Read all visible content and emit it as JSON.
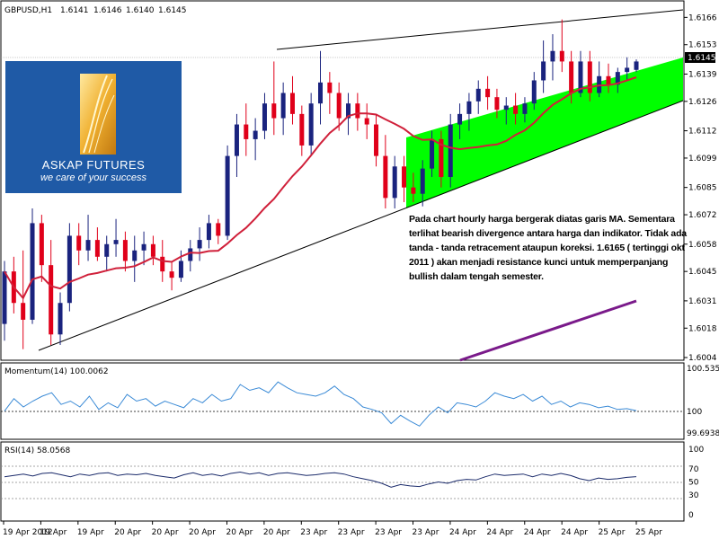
{
  "header": {
    "symbol": "GBPUSD,H1",
    "ohlc": [
      "1.6141",
      "1.6146",
      "1.6140",
      "1.6145"
    ]
  },
  "logo": {
    "name": "ASKAP FUTURES",
    "tagline": "we care of your success"
  },
  "note": "Pada chart hourly harga bergerak diatas garis MA. Sementara terlihat bearish divergence antara harga dan indikator. Tidak ada tanda - tanda retracement ataupun koreksi. 1.6165 ( tertinggi okt 2011 ) akan menjadi resistance kunci untuk memperpanjang bullish dalam tengah semester.",
  "colors": {
    "bull": "#1a237e",
    "bear": "#e0001a",
    "ma": "#d0203a",
    "channel_fill": "#00ff00",
    "momentum": "#3a8ad6",
    "rsi": "#1a2a6a",
    "purple": "#7a1a8a"
  },
  "chart_data": [
    {
      "type": "candlestick",
      "title": "GBPUSD,H1",
      "ylim": [
        1.6004,
        1.617
      ],
      "y_ticks": [
        "1.6166",
        "1.6153",
        "1.6139",
        "1.6126",
        "1.6112",
        "1.6099",
        "1.6085",
        "1.6072",
        "1.6058",
        "1.6045",
        "1.6031",
        "1.6018",
        "1.6004"
      ],
      "current_price": "1.6145",
      "x_tick_labels": [
        "19 Apr 2012",
        "19 Apr",
        "19 Apr",
        "20 Apr",
        "20 Apr",
        "20 Apr",
        "20 Apr",
        "20 Apr",
        "23 Apr",
        "23 Apr",
        "23 Apr",
        "23 Apr",
        "24 Apr",
        "24 Apr",
        "24 Apr",
        "24 Apr",
        "25 Apr",
        "25 Apr"
      ],
      "candles": [
        [
          1.602,
          1.605,
          1.6012,
          1.6045
        ],
        [
          1.6045,
          1.6052,
          1.6025,
          1.603
        ],
        [
          1.603,
          1.6055,
          1.6008,
          1.6022
        ],
        [
          1.6022,
          1.6075,
          1.602,
          1.6068
        ],
        [
          1.6068,
          1.6072,
          1.604,
          1.6048
        ],
        [
          1.6048,
          1.606,
          1.601,
          1.6015
        ],
        [
          1.6015,
          1.6035,
          1.601,
          1.603
        ],
        [
          1.603,
          1.6068,
          1.6026,
          1.6062
        ],
        [
          1.6062,
          1.6068,
          1.6048,
          1.6055
        ],
        [
          1.6055,
          1.6072,
          1.605,
          1.606
        ],
        [
          1.606,
          1.6066,
          1.605,
          1.6052
        ],
        [
          1.6052,
          1.6062,
          1.6045,
          1.6058
        ],
        [
          1.6058,
          1.607,
          1.6052,
          1.606
        ],
        [
          1.606,
          1.6064,
          1.6045,
          1.605
        ],
        [
          1.605,
          1.6062,
          1.604,
          1.6055
        ],
        [
          1.6055,
          1.6064,
          1.6048,
          1.6058
        ],
        [
          1.6058,
          1.6062,
          1.6048,
          1.6052
        ],
        [
          1.6052,
          1.606,
          1.604,
          1.6045
        ],
        [
          1.6045,
          1.605,
          1.6036,
          1.6042
        ],
        [
          1.6042,
          1.6055,
          1.604,
          1.605
        ],
        [
          1.605,
          1.606,
          1.6045,
          1.6056
        ],
        [
          1.6056,
          1.6066,
          1.605,
          1.606
        ],
        [
          1.606,
          1.6072,
          1.6056,
          1.6068
        ],
        [
          1.6068,
          1.607,
          1.6058,
          1.6062
        ],
        [
          1.6062,
          1.6105,
          1.606,
          1.61
        ],
        [
          1.61,
          1.612,
          1.609,
          1.6115
        ],
        [
          1.6115,
          1.6125,
          1.61,
          1.6108
        ],
        [
          1.6108,
          1.6118,
          1.6098,
          1.6112
        ],
        [
          1.6112,
          1.613,
          1.6108,
          1.6125
        ],
        [
          1.6125,
          1.6145,
          1.611,
          1.6118
        ],
        [
          1.6118,
          1.6135,
          1.611,
          1.613
        ],
        [
          1.613,
          1.6138,
          1.6115,
          1.612
        ],
        [
          1.612,
          1.6124,
          1.61,
          1.6105
        ],
        [
          1.6105,
          1.613,
          1.61,
          1.6125
        ],
        [
          1.6125,
          1.615,
          1.6115,
          1.6135
        ],
        [
          1.6135,
          1.614,
          1.612,
          1.613
        ],
        [
          1.613,
          1.6135,
          1.6112,
          1.6118
        ],
        [
          1.6118,
          1.613,
          1.611,
          1.6125
        ],
        [
          1.6125,
          1.613,
          1.6112,
          1.6118
        ],
        [
          1.6118,
          1.6125,
          1.6108,
          1.6115
        ],
        [
          1.6115,
          1.612,
          1.6095,
          1.61
        ],
        [
          1.61,
          1.611,
          1.6075,
          1.608
        ],
        [
          1.608,
          1.61,
          1.6075,
          1.6095
        ],
        [
          1.6095,
          1.61,
          1.6078,
          1.6085
        ],
        [
          1.6085,
          1.6092,
          1.6078,
          1.6082
        ],
        [
          1.6082,
          1.6098,
          1.6076,
          1.6094
        ],
        [
          1.6094,
          1.6112,
          1.609,
          1.6108
        ],
        [
          1.6108,
          1.6112,
          1.6085,
          1.609
        ],
        [
          1.609,
          1.612,
          1.6085,
          1.6115
        ],
        [
          1.6115,
          1.6125,
          1.6108,
          1.612
        ],
        [
          1.612,
          1.613,
          1.6112,
          1.6126
        ],
        [
          1.6126,
          1.6136,
          1.612,
          1.6132
        ],
        [
          1.6132,
          1.6138,
          1.6122,
          1.6128
        ],
        [
          1.6128,
          1.6132,
          1.6118,
          1.6122
        ],
        [
          1.6122,
          1.6128,
          1.6115,
          1.6124
        ],
        [
          1.6124,
          1.613,
          1.6115,
          1.612
        ],
        [
          1.612,
          1.6128,
          1.6116,
          1.6125
        ],
        [
          1.6125,
          1.614,
          1.6122,
          1.6136
        ],
        [
          1.6136,
          1.6155,
          1.613,
          1.6145
        ],
        [
          1.6145,
          1.6158,
          1.6136,
          1.615
        ],
        [
          1.615,
          1.6165,
          1.614,
          1.6145
        ],
        [
          1.6145,
          1.615,
          1.6125,
          1.613
        ],
        [
          1.613,
          1.615,
          1.6128,
          1.6145
        ],
        [
          1.6145,
          1.615,
          1.6126,
          1.613
        ],
        [
          1.613,
          1.6145,
          1.6128,
          1.6138
        ],
        [
          1.6138,
          1.6144,
          1.613,
          1.6134
        ],
        [
          1.6134,
          1.6142,
          1.613,
          1.614
        ],
        [
          1.614,
          1.6147,
          1.6136,
          1.6142
        ],
        [
          1.6141,
          1.6146,
          1.614,
          1.6145
        ]
      ]
    },
    {
      "type": "line",
      "title": "Momentum(14) 100.0062",
      "ylim": [
        99.6938,
        100.5357
      ],
      "y_ticks": [
        "100.5357",
        "100",
        "99.6938"
      ],
      "reference_level": 100,
      "values": [
        100.0,
        100.15,
        100.05,
        100.12,
        100.18,
        100.22,
        100.08,
        100.12,
        100.05,
        100.18,
        100.02,
        100.1,
        100.04,
        100.2,
        100.12,
        100.15,
        100.06,
        100.12,
        100.08,
        100.04,
        100.15,
        100.1,
        100.2,
        100.12,
        100.15,
        100.32,
        100.25,
        100.28,
        100.22,
        100.35,
        100.28,
        100.22,
        100.2,
        100.18,
        100.22,
        100.3,
        100.2,
        100.15,
        100.05,
        100.02,
        99.98,
        99.85,
        99.95,
        99.88,
        99.82,
        99.95,
        100.05,
        99.98,
        100.1,
        100.08,
        100.05,
        100.12,
        100.22,
        100.18,
        100.15,
        100.2,
        100.12,
        100.18,
        100.08,
        100.12,
        100.05,
        100.1,
        100.08,
        100.04,
        100.06,
        100.02,
        100.03,
        100.0062
      ]
    },
    {
      "type": "line",
      "title": "RSI(14) 58.0568",
      "ylim": [
        0,
        100
      ],
      "y_ticks": [
        "100",
        "70",
        "50",
        "30",
        "0"
      ],
      "levels": [
        70,
        50,
        30
      ],
      "values": [
        58,
        60,
        62,
        59,
        63,
        64,
        61,
        58,
        62,
        60,
        63,
        64,
        60,
        62,
        61,
        63,
        60,
        58,
        56,
        61,
        64,
        60,
        62,
        59,
        63,
        65,
        62,
        64,
        60,
        63,
        64,
        62,
        60,
        61,
        63,
        64,
        62,
        58,
        55,
        52,
        48,
        42,
        46,
        44,
        43,
        47,
        50,
        48,
        52,
        54,
        53,
        58,
        62,
        60,
        61,
        62,
        58,
        62,
        60,
        63,
        60,
        55,
        52,
        56,
        54,
        55,
        57,
        58.0568
      ]
    }
  ]
}
